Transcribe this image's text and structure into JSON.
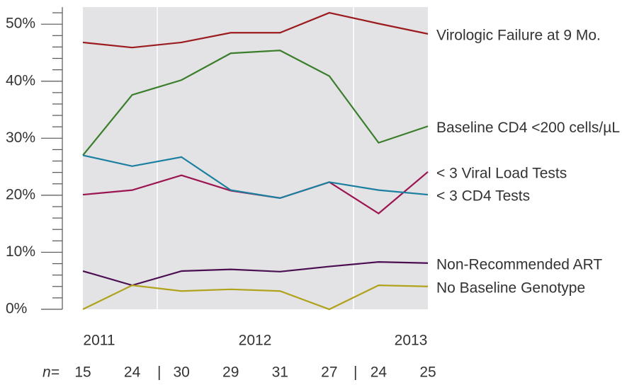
{
  "chart_data": {
    "type": "line",
    "categories_label": "n=",
    "categories": [
      "15",
      "24",
      "30",
      "29",
      "31",
      "27",
      "24",
      "25"
    ],
    "year_labels": [
      "2011",
      "2012",
      "2013"
    ],
    "series": [
      {
        "name": "Virologic Failure at 9 Mo.",
        "color": "#9b1b1f",
        "values": [
          46.8,
          45.9,
          46.8,
          48.5,
          48.5,
          52.0,
          50.1,
          48.3
        ]
      },
      {
        "name": "Baseline CD4 <200 cells/µL",
        "color": "#3a7d2a",
        "values": [
          27.0,
          37.6,
          40.2,
          44.9,
          45.4,
          40.9,
          29.2,
          32.1
        ]
      },
      {
        "name": "< 3 Viral Load Tests",
        "color": "#9b1550",
        "values": [
          20.1,
          20.9,
          23.5,
          20.8,
          19.5,
          22.3,
          16.8,
          24.1
        ]
      },
      {
        "name": "< 3 CD4 Tests",
        "color": "#1a7fa0",
        "values": [
          27.0,
          25.1,
          26.7,
          20.9,
          19.5,
          22.3,
          20.9,
          20.1
        ]
      },
      {
        "name": "Non-Recommended ART",
        "color": "#4b0e52",
        "values": [
          6.7,
          4.2,
          6.7,
          7.0,
          6.6,
          7.5,
          8.3,
          8.1
        ]
      },
      {
        "name": "No Baseline Genotype",
        "color": "#b0a21a",
        "values": [
          0,
          4.2,
          3.2,
          3.5,
          3.2,
          0,
          4.2,
          4.0
        ]
      }
    ],
    "ylim": [
      0,
      53
    ],
    "yticks": [
      {
        "value": 0,
        "label": "0%"
      },
      {
        "value": 10,
        "label": "10%"
      },
      {
        "value": 20,
        "label": "20%"
      },
      {
        "value": 30,
        "label": "30%"
      },
      {
        "value": 40,
        "label": "40%"
      },
      {
        "value": 50,
        "label": "50%"
      }
    ],
    "minor_yticks": [
      2,
      4,
      6,
      8,
      12,
      14,
      16,
      18,
      22,
      24,
      26,
      28,
      32,
      34,
      36,
      38,
      42,
      44,
      46,
      48,
      52
    ]
  }
}
